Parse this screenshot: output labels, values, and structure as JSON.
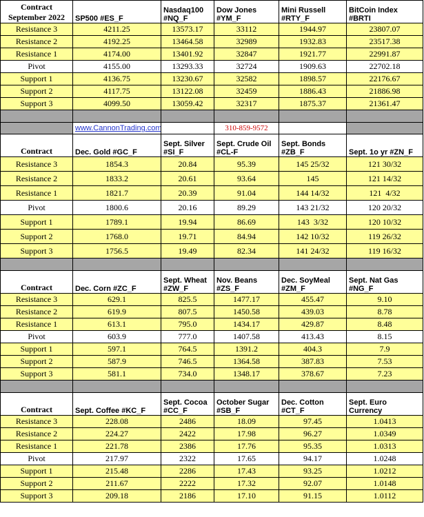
{
  "sections": [
    {
      "header": [
        "Contract\nSeptember 2022",
        "SP500 #ES_F",
        "Nasdaq100\n#NQ_F",
        "Dow Jones\n#YM_F",
        "Mini Russell\n#RTY_F",
        "BitCoin Index #BRTI"
      ],
      "rows": [
        [
          "Resistance 3",
          "4211.25",
          "13573.17",
          "33112",
          "1944.97",
          "23807.07"
        ],
        [
          "Resistance 2",
          "4192.25",
          "13464.58",
          "32989",
          "1932.83",
          "23517.38"
        ],
        [
          "Resistance 1",
          "4174.00",
          "13401.92",
          "32847",
          "1921.77",
          "22991.87"
        ],
        [
          "Pivot",
          "4155.00",
          "13293.33",
          "32724",
          "1909.63",
          "22702.18"
        ],
        [
          "Support 1",
          "4136.75",
          "13230.67",
          "32582",
          "1898.57",
          "22176.67"
        ],
        [
          "Support 2",
          "4117.75",
          "13122.08",
          "32459",
          "1886.43",
          "21886.98"
        ],
        [
          "Support 3",
          "4099.50",
          "13059.42",
          "32317",
          "1875.37",
          "21361.47"
        ]
      ]
    },
    {
      "header": [
        "Contract",
        "Dec. Gold #GC_F",
        "Sept. Silver\n#SI_F",
        "Sept. Crude Oil\n#CL-F",
        "Sept. Bonds\n#ZB_F",
        "Sept. 1o yr  #ZN_F"
      ],
      "rows": [
        [
          "Resistance 3",
          "1854.3",
          "20.84",
          "95.39",
          "145 25/32",
          "121 30/32"
        ],
        [
          "Resistance 2",
          "1833.2",
          "20.61",
          "93.64",
          "145",
          "121 14/32"
        ],
        [
          "Resistance 1",
          "1821.7",
          "20.39",
          "91.04",
          "144 14/32",
          "121  4/32"
        ],
        [
          "Pivot",
          "1800.6",
          "20.16",
          "89.29",
          "143 21/32",
          "120 20/32"
        ],
        [
          "Support 1",
          "1789.1",
          "19.94",
          "86.69",
          "143  3/32",
          "120 10/32"
        ],
        [
          "Support 2",
          "1768.0",
          "19.71",
          "84.94",
          "142 10/32",
          "119 26/32"
        ],
        [
          "Support 3",
          "1756.5",
          "19.49",
          "82.34",
          "141 24/32",
          "119 16/32"
        ]
      ]
    },
    {
      "header": [
        "Contract",
        "Dec. Corn #ZC_F",
        "Sept.  Wheat\n#ZW_F",
        "Nov. Beans\n#ZS_F",
        "Dec. SoyMeal\n#ZM_F",
        "Sept. Nat Gas\n#NG_F"
      ],
      "rows": [
        [
          "Resistance 3",
          "629.1",
          "825.5",
          "1477.17",
          "455.47",
          "9.10"
        ],
        [
          "Resistance 2",
          "619.9",
          "807.5",
          "1450.58",
          "439.03",
          "8.78"
        ],
        [
          "Resistance 1",
          "613.1",
          "795.0",
          "1434.17",
          "429.87",
          "8.48"
        ],
        [
          "Pivot",
          "603.9",
          "777.0",
          "1407.58",
          "413.43",
          "8.15"
        ],
        [
          "Support 1",
          "597.1",
          "764.5",
          "1391.2",
          "404.3",
          "7.9"
        ],
        [
          "Support 2",
          "587.9",
          "746.5",
          "1364.58",
          "387.83",
          "7.53"
        ],
        [
          "Support 3",
          "581.1",
          "734.0",
          "1348.17",
          "378.67",
          "7.23"
        ]
      ]
    },
    {
      "header": [
        "Contract",
        "Sept. Coffee #KC_F",
        "Sept. Cocoa\n#CC_F",
        "October Sugar\n#SB_F",
        "Dec. Cotton\n#CT_F",
        "Sept.  Euro\nCurrency"
      ],
      "rows": [
        [
          "Resistance 3",
          "228.08",
          "2486",
          "18.09",
          "97.45",
          "1.0413"
        ],
        [
          "Resistance 2",
          "224.27",
          "2422",
          "17.98",
          "96.27",
          "1.0349"
        ],
        [
          "Resistance 1",
          "221.78",
          "2386",
          "17.76",
          "95.35",
          "1.0313"
        ],
        [
          "Pivot",
          "217.97",
          "2322",
          "17.65",
          "94.17",
          "1.0248"
        ],
        [
          "Support 1",
          "215.48",
          "2286",
          "17.43",
          "93.25",
          "1.0212"
        ],
        [
          "Support 2",
          "211.67",
          "2222",
          "17.32",
          "92.07",
          "1.0148"
        ],
        [
          "Support 3",
          "209.18",
          "2186",
          "17.10",
          "91.15",
          "1.0112"
        ]
      ]
    }
  ],
  "contact": {
    "site": "www.CannonTrading.com",
    "phone": "310-859-9572"
  }
}
